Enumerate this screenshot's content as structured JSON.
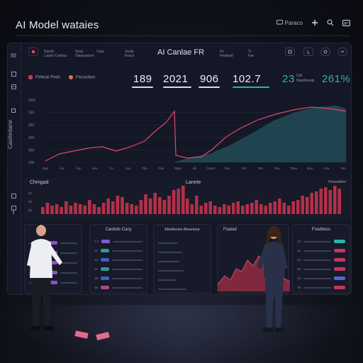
{
  "app": {
    "title": "AI Model wataies"
  },
  "top_bar": {
    "left_label": "Paraco",
    "icons": [
      "chat-icon",
      "pin-icon",
      "search-icon",
      "card-icon"
    ]
  },
  "header": {
    "center_title": "AI Canlae FR",
    "left_items": [
      {
        "top": "Sasob",
        "bottom": "Lastsr Crelbas"
      },
      {
        "top": "Vesp",
        "bottom": "Stearpaicen"
      },
      {
        "top": "Carp",
        "bottom": ""
      },
      {
        "top": "Sealp",
        "bottom": "Rracn"
      }
    ],
    "right_items": [
      {
        "top": "Fb",
        "bottom": "Peetpad"
      },
      {
        "top": "Tr",
        "bottom": "Fse"
      }
    ],
    "buttons": [
      "filter-icon",
      "export-icon",
      "refresh-icon",
      "settings-icon"
    ]
  },
  "sidebar": {
    "label": "Caeltedane",
    "icons": [
      "menu-icon",
      "dash-icon",
      "grid-icon",
      "list-icon",
      "stat-icon",
      "alert-icon",
      "user-icon"
    ]
  },
  "legend": [
    {
      "label": "Ftrlecai Peds",
      "color": "#c23a55"
    },
    {
      "label": "Fiscaobos",
      "color": "#d9774a"
    }
  ],
  "stats": [
    {
      "value": "189",
      "underline": "#e0e2ea"
    },
    {
      "value": "2021",
      "underline": "#e0e2ea"
    },
    {
      "value": "906",
      "underline": "#e0e2ea"
    },
    {
      "value": "102.7",
      "underline": "#2bb3a8"
    },
    {
      "value": "23",
      "label_top": "Crb",
      "label_bottom": "Dasrhinedy",
      "accent": true
    },
    {
      "value": "261%",
      "accent": true
    }
  ],
  "line_chart": {
    "y_ticks": [
      "20%",
      "250",
      "350",
      "250",
      "550",
      "200"
    ],
    "x_ticks": [
      "Sab",
      "Fiu",
      "Tuo",
      "Eec",
      "Fo",
      "Jao",
      "Thu",
      "Fan",
      "Tabe",
      "Alli",
      "Caren",
      "Fea",
      "Tec",
      "Tes",
      "Teo",
      "Thee",
      "Bao",
      "Fsa",
      "Teo"
    ],
    "series_a_color": "#d94a6b",
    "series_b_color": "#2a6a72"
  },
  "bar_chart": {
    "left_title": "Chmgad",
    "right_title": "Lanete",
    "right_corner": "Psooodilne",
    "y_ticks": [
      "42",
      "20",
      "20"
    ],
    "bar_color": "#b3304a"
  },
  "cards": [
    {
      "title": "",
      "rows": [
        {
          "num": "",
          "color": "#8c4fd0"
        },
        {
          "num": "",
          "color": "#8c4fd0"
        },
        {
          "num": "",
          "color": "#8c4fd0"
        },
        {
          "num": "",
          "color": "#8c4fd0"
        },
        {
          "num": "",
          "color": "#8c4fd0"
        }
      ]
    },
    {
      "title": "Cantiols Cacy",
      "rows": [
        {
          "num": "1:2",
          "color": "#7f5bd6"
        },
        {
          "num": "13",
          "color": "#2e9a93"
        },
        {
          "num": "13",
          "color": "#3b5fc7"
        },
        {
          "num": "14",
          "color": "#2e9a93"
        },
        {
          "num": "15",
          "color": "#3b5fc7"
        },
        {
          "num": "15",
          "color": "#b24a8a"
        }
      ]
    },
    {
      "title": "Efarlincies Beaviose",
      "rows": [
        {
          "num": "",
          "color": ""
        },
        {
          "num": "",
          "color": ""
        },
        {
          "num": "",
          "color": ""
        },
        {
          "num": "",
          "color": ""
        },
        {
          "num": "",
          "color": ""
        },
        {
          "num": "",
          "color": ""
        }
      ]
    },
    {
      "title": "Foatad",
      "area_color": "#8c2a40"
    },
    {
      "title": "Fooditeos",
      "rows": [
        {
          "num": "12",
          "color": "#2bb3a8"
        },
        {
          "num": "14",
          "color": "#c2375a"
        },
        {
          "num": "14",
          "color": "#c2375a"
        },
        {
          "num": "15",
          "color": "#c2375a"
        },
        {
          "num": "15",
          "color": "#5b5fd6"
        },
        {
          "num": "18",
          "color": "#c2375a"
        }
      ]
    }
  ]
}
